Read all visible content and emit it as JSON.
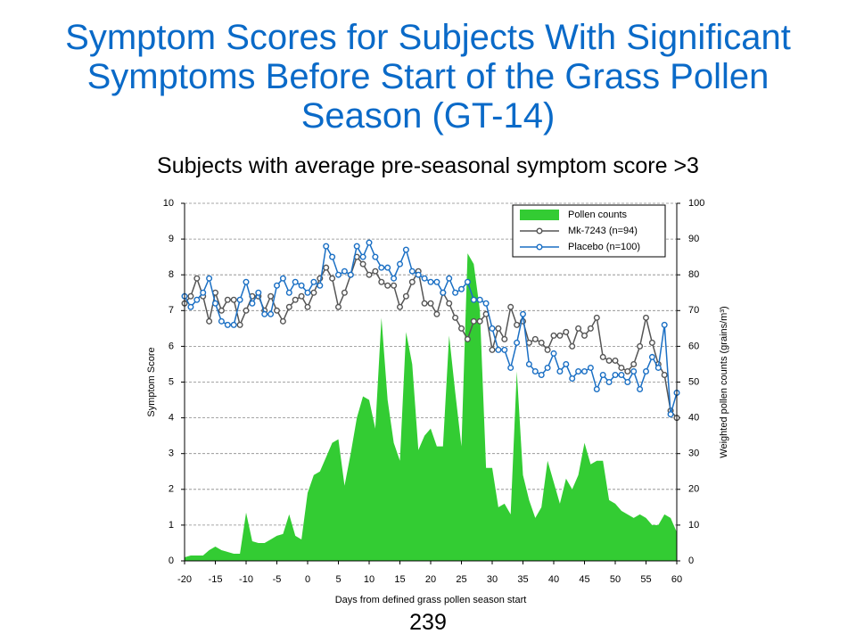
{
  "chart_data": {
    "type": "combo",
    "title": "Symptom Scores for Subjects With Significant Symptoms Before Start of the Grass Pollen Season (GT-14)",
    "subtitle": "Subjects with average pre-seasonal symptom score >3",
    "x_label": "Days from defined grass pollen season start",
    "y_label": "Symptom Score",
    "y2_label": "Weighted pollen counts (grains/m³)",
    "x": [
      -20,
      -19,
      -18,
      -17,
      -16,
      -15,
      -14,
      -13,
      -12,
      -11,
      -10,
      -9,
      -8,
      -7,
      -6,
      -5,
      -4,
      -3,
      -2,
      -1,
      0,
      1,
      2,
      3,
      4,
      5,
      6,
      7,
      8,
      9,
      10,
      11,
      12,
      13,
      14,
      15,
      16,
      17,
      18,
      19,
      20,
      21,
      22,
      23,
      24,
      25,
      26,
      27,
      28,
      29,
      30,
      31,
      32,
      33,
      34,
      35,
      36,
      37,
      38,
      39,
      40,
      41,
      42,
      43,
      44,
      45,
      46,
      47,
      48,
      49,
      50,
      51,
      52,
      53,
      54,
      55,
      56,
      57,
      58,
      59,
      60
    ],
    "xlim": [
      -20,
      60
    ],
    "xticks": [
      -20,
      -15,
      -10,
      -5,
      0,
      5,
      10,
      15,
      20,
      25,
      30,
      35,
      40,
      45,
      50,
      55,
      60
    ],
    "ylim": [
      0,
      10
    ],
    "yticks": [
      0,
      1,
      2,
      3,
      4,
      5,
      6,
      7,
      8,
      9,
      10
    ],
    "y2lim": [
      0,
      100
    ],
    "y2ticks": [
      0,
      10,
      20,
      30,
      40,
      50,
      60,
      70,
      80,
      90,
      100
    ],
    "grid": true,
    "legend": "upper-right",
    "series": [
      {
        "name": "Pollen counts",
        "type": "area",
        "axis": "y2",
        "color": "#33cc33",
        "values": [
          1,
          1.5,
          1.5,
          1.5,
          3,
          4,
          3,
          2.5,
          2,
          2,
          13.5,
          5.5,
          5,
          5,
          6,
          7,
          7.5,
          13,
          7,
          6,
          19,
          24,
          25,
          29,
          33,
          34,
          21,
          30,
          40,
          46,
          45,
          37,
          68,
          45,
          33,
          28,
          64,
          55,
          31,
          35,
          37,
          32,
          32,
          63,
          47,
          32,
          86,
          83,
          70,
          26,
          26,
          15,
          16,
          13,
          53,
          24,
          17,
          12,
          15,
          28,
          22,
          16,
          23,
          20,
          24,
          33,
          27,
          28,
          28,
          17,
          16,
          14,
          13,
          12,
          13,
          12,
          10,
          10,
          13,
          12,
          8
        ]
      },
      {
        "name": "Mk-7243 (n=94)",
        "type": "line",
        "color": "#555555",
        "values": [
          7.2,
          7.4,
          7.9,
          7.4,
          6.7,
          7.5,
          7.0,
          7.3,
          7.3,
          6.6,
          7.0,
          7.4,
          7.4,
          7.0,
          7.4,
          7.0,
          6.7,
          7.1,
          7.3,
          7.4,
          7.1,
          7.5,
          7.9,
          8.2,
          7.9,
          7.1,
          7.5,
          8.0,
          8.5,
          8.3,
          8.0,
          8.1,
          7.8,
          7.7,
          7.7,
          7.1,
          7.4,
          7.8,
          8.1,
          7.2,
          7.2,
          6.9,
          7.5,
          7.2,
          6.8,
          6.5,
          6.2,
          6.7,
          6.7,
          6.9,
          5.9,
          6.5,
          6.2,
          7.1,
          6.6,
          6.7,
          6.1,
          6.2,
          6.1,
          5.9,
          6.3,
          6.3,
          6.4,
          6.0,
          6.5,
          6.3,
          6.5,
          6.8,
          5.7,
          5.6,
          5.6,
          5.4,
          5.3,
          5.5,
          6.0,
          6.8,
          6.1,
          5.5,
          5.2,
          4.2,
          4.0
        ]
      },
      {
        "name": "Placebo (n=100)",
        "type": "line",
        "color": "#1a6fc4",
        "values": [
          7.4,
          7.1,
          7.3,
          7.5,
          7.9,
          7.2,
          6.7,
          6.6,
          6.6,
          7.3,
          7.8,
          7.2,
          7.5,
          6.9,
          6.9,
          7.7,
          7.9,
          7.5,
          7.8,
          7.7,
          7.5,
          7.8,
          7.7,
          8.8,
          8.5,
          8.0,
          8.1,
          8.0,
          8.8,
          8.5,
          8.9,
          8.5,
          8.2,
          8.2,
          7.9,
          8.3,
          8.7,
          8.1,
          8.0,
          7.9,
          7.8,
          7.8,
          7.5,
          7.9,
          7.5,
          7.6,
          7.8,
          7.3,
          7.3,
          7.2,
          6.5,
          5.9,
          5.9,
          5.4,
          6.1,
          6.9,
          5.5,
          5.3,
          5.2,
          5.4,
          5.8,
          5.3,
          5.5,
          5.1,
          5.3,
          5.3,
          5.4,
          4.8,
          5.2,
          5.0,
          5.2,
          5.2,
          5.0,
          5.3,
          4.8,
          5.3,
          5.7,
          5.4,
          6.6,
          4.1,
          4.7
        ]
      }
    ]
  },
  "page_number": "239"
}
